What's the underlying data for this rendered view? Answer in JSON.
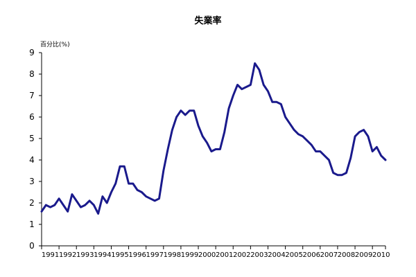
{
  "chart_data": {
    "type": "line",
    "title": "失業率",
    "ylabel": "百分比(%)",
    "xlabel": "",
    "ylim": [
      0,
      9
    ],
    "yticks": [
      0,
      1,
      2,
      3,
      4,
      5,
      6,
      7,
      8,
      9
    ],
    "xlim": [
      1991,
      2010.75
    ],
    "xtick_labels": [
      "1991",
      "1992",
      "1993",
      "1994",
      "1995",
      "1996",
      "1997",
      "1998",
      "1999",
      "2000",
      "2001",
      "2002",
      "2003",
      "2004",
      "2005",
      "2006",
      "2007",
      "2008",
      "2009",
      "2010"
    ],
    "grid": false,
    "legend": "none",
    "series_color": "#1a1a8c",
    "series": [
      {
        "x": [
          1991.0,
          1991.25,
          1991.5,
          1991.75,
          1992.0,
          1992.25,
          1992.5,
          1992.75,
          1993.0,
          1993.25,
          1993.5,
          1993.75,
          1994.0,
          1994.25,
          1994.5,
          1994.75,
          1995.0,
          1995.25,
          1995.5,
          1995.75,
          1996.0,
          1996.25,
          1996.5,
          1996.75,
          1997.0,
          1997.25,
          1997.5,
          1997.75,
          1998.0,
          1998.25,
          1998.5,
          1998.75,
          1999.0,
          1999.25,
          1999.5,
          1999.75,
          2000.0,
          2000.25,
          2000.5,
          2000.75,
          2001.0,
          2001.25,
          2001.5,
          2001.75,
          2002.0,
          2002.25,
          2002.5,
          2002.75,
          2003.0,
          2003.25,
          2003.5,
          2003.75,
          2004.0,
          2004.25,
          2004.5,
          2004.75,
          2005.0,
          2005.25,
          2005.5,
          2005.75,
          2006.0,
          2006.25,
          2006.5,
          2006.75,
          2007.0,
          2007.25,
          2007.5,
          2007.75,
          2008.0,
          2008.25,
          2008.5,
          2008.75,
          2009.0,
          2009.25,
          2009.5,
          2009.75,
          2010.0,
          2010.25,
          2010.5,
          2010.75
        ],
        "values": [
          1.6,
          1.9,
          1.8,
          1.9,
          2.2,
          1.9,
          1.6,
          2.4,
          2.1,
          1.8,
          1.9,
          2.1,
          1.9,
          1.5,
          2.3,
          2.0,
          2.5,
          2.9,
          3.7,
          3.7,
          2.9,
          2.9,
          2.6,
          2.5,
          2.3,
          2.2,
          2.1,
          2.2,
          3.5,
          4.5,
          5.4,
          6.0,
          6.3,
          6.1,
          6.3,
          6.3,
          5.6,
          5.1,
          4.8,
          4.4,
          4.5,
          4.5,
          5.3,
          6.4,
          7.0,
          7.5,
          7.3,
          7.4,
          7.5,
          8.5,
          8.2,
          7.5,
          7.2,
          6.7,
          6.7,
          6.6,
          6.0,
          5.7,
          5.4,
          5.2,
          5.1,
          4.9,
          4.7,
          4.4,
          4.4,
          4.2,
          4.0,
          3.4,
          3.3,
          3.3,
          3.4,
          4.1,
          5.1,
          5.3,
          5.4,
          5.1,
          4.4,
          4.6,
          4.2,
          4.0
        ]
      }
    ]
  }
}
